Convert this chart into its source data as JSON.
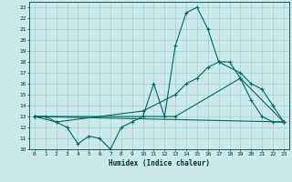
{
  "xlabel": "Humidex (Indice chaleur)",
  "background_color": "#cce9e9",
  "grid_color": "#aad4d4",
  "line_color": "#006666",
  "xlim": [
    -0.5,
    23.5
  ],
  "ylim": [
    10,
    23.5
  ],
  "xticks": [
    0,
    1,
    2,
    3,
    4,
    5,
    6,
    7,
    8,
    9,
    10,
    11,
    12,
    13,
    14,
    15,
    16,
    17,
    18,
    19,
    20,
    21,
    22,
    23
  ],
  "yticks": [
    10,
    11,
    12,
    13,
    14,
    15,
    16,
    17,
    18,
    19,
    20,
    21,
    22,
    23
  ],
  "line1_x": [
    0,
    1,
    2,
    3,
    4,
    5,
    6,
    7,
    8,
    9,
    10,
    11,
    12,
    13,
    14,
    15,
    16,
    17,
    18,
    19,
    20,
    21,
    22,
    23
  ],
  "line1_y": [
    13,
    13,
    12.5,
    12,
    10.5,
    11.2,
    11,
    10,
    12,
    12.5,
    13,
    16,
    13,
    19.5,
    22.5,
    23,
    21,
    18,
    18,
    16.5,
    14.5,
    13,
    12.5,
    12.5
  ],
  "line2_x": [
    0,
    2,
    10,
    13,
    14,
    15,
    16,
    17,
    19,
    20,
    21,
    22,
    23
  ],
  "line2_y": [
    13,
    12.5,
    13.5,
    15,
    16,
    16.5,
    17.5,
    18,
    17,
    16,
    15.5,
    14,
    12.5
  ],
  "line3_x": [
    0,
    13,
    19,
    23
  ],
  "line3_y": [
    13,
    13,
    16.5,
    12.5
  ],
  "line4_x": [
    0,
    23
  ],
  "line4_y": [
    13,
    12.5
  ]
}
